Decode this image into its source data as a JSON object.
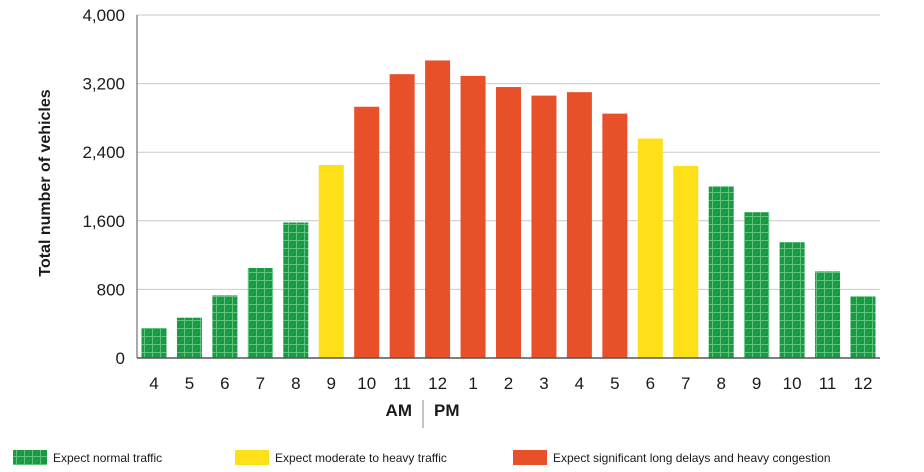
{
  "chart_data": {
    "type": "bar",
    "title": "",
    "xlabel": "",
    "ylabel": "Total number of vehicles",
    "ylim": [
      0,
      4000
    ],
    "yticks": [
      "0",
      "800",
      "1,600",
      "2,400",
      "3,200",
      "4,000"
    ],
    "ytick_values": [
      0,
      800,
      1600,
      2400,
      3200,
      4000
    ],
    "grid": true,
    "categories": [
      "4",
      "5",
      "6",
      "7",
      "8",
      "9",
      "10",
      "11",
      "12",
      "1",
      "2",
      "3",
      "4",
      "5",
      "6",
      "7",
      "8",
      "9",
      "10",
      "11",
      "12"
    ],
    "values": [
      350,
      470,
      730,
      1050,
      1580,
      2250,
      2930,
      3310,
      3470,
      3290,
      3160,
      3060,
      3100,
      2850,
      2560,
      2240,
      2000,
      1700,
      1350,
      1010,
      720
    ],
    "bar_categories": [
      "normal",
      "normal",
      "normal",
      "normal",
      "normal",
      "moderate",
      "heavy",
      "heavy",
      "heavy",
      "heavy",
      "heavy",
      "heavy",
      "heavy",
      "heavy",
      "moderate",
      "moderate",
      "normal",
      "normal",
      "normal",
      "normal",
      "normal"
    ],
    "period_labels": {
      "am": "AM",
      "pm": "PM"
    },
    "legend_position": "bottom",
    "legend": [
      {
        "key": "normal",
        "label": "Expect normal traffic",
        "color": "#1a9a43"
      },
      {
        "key": "moderate",
        "label": "Expect moderate to heavy traffic",
        "color": "#fde018"
      },
      {
        "key": "heavy",
        "label": "Expect significant long delays and heavy congestion",
        "color": "#e8502a"
      }
    ]
  }
}
